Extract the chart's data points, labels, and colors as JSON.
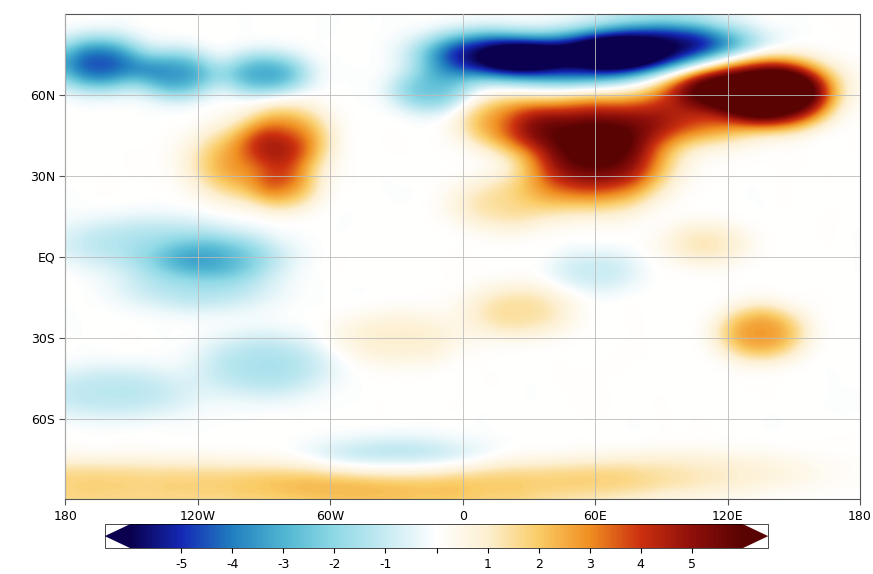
{
  "lon_labels": [
    "180",
    "120W",
    "60W",
    "0",
    "60E",
    "120E",
    "180"
  ],
  "lat_labels": [
    "60N",
    "30N",
    "EQ",
    "30S",
    "60S"
  ],
  "lon_ticks": [
    -180,
    -120,
    -60,
    0,
    60,
    120,
    180
  ],
  "lat_ticks": [
    60,
    30,
    0,
    -30,
    -60
  ],
  "colorbar_ticks": [
    -5,
    -4,
    -3,
    -2,
    -1,
    1,
    2,
    3,
    4,
    5
  ],
  "colorbar_tick_labels": [
    "-5",
    "-4",
    "-3",
    "-2",
    "-1",
    "1",
    "2",
    "3",
    "4",
    "5"
  ],
  "vmin": -6,
  "vmax": 6,
  "colors_neg": [
    "#0A0050",
    "#1428B4",
    "#2080C0",
    "#50B4D0",
    "#90D0E0",
    "#C8EAF0",
    "#FFFFFF"
  ],
  "colors_pos": [
    "#FFFFFF",
    "#FFF0D0",
    "#FEDE96",
    "#F09030",
    "#CC3010",
    "#901010",
    "#5A0000"
  ],
  "background_color": "#FFFFFF",
  "grid_color": "#BBBBBB",
  "coast_color": "#555555",
  "border_color": "#888888"
}
